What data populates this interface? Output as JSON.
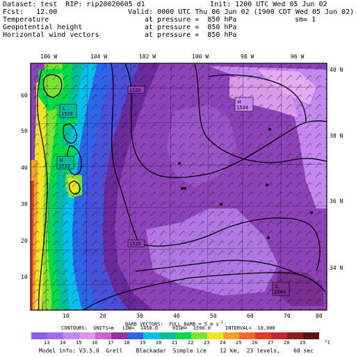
{
  "header": {
    "dataset_line": "Dataset: test  RIP: rip20020605 d1",
    "init_line": "Init: 1200 UTC Wed 05 Jun 02",
    "fcst_line": "Fcst:   12.00",
    "valid_line": "Valid: 0000 UTC Thu 06 Jun 02 (1900 CDT Wed 05 Jun 02)",
    "fields": [
      {
        "name": "Temperature",
        "level": "at pressure =  850 hPa",
        "extra": "sm= 1"
      },
      {
        "name": "Geopotential height",
        "level": "at pressure =  850 hPa",
        "extra": ""
      },
      {
        "name": "Horizontal wind vectors",
        "level": "at pressure =  850 hPa",
        "extra": ""
      }
    ]
  },
  "map": {
    "top_lon_labels": [
      "106 W",
      "104 W",
      "102 W",
      "100 W",
      "98 W",
      "96 W"
    ],
    "right_lat_labels": [
      "40 N",
      "38 N",
      "36 N",
      "34 N"
    ],
    "left_grid_labels": [
      "60",
      "50",
      "40",
      "30",
      "20",
      "10"
    ],
    "bottom_grid_labels": [
      "10",
      "20",
      "30",
      "40",
      "50",
      "60",
      "70",
      "80"
    ],
    "height_labels": [
      {
        "type": "",
        "value": "1520"
      },
      {
        "type": "L",
        "value": "1528"
      },
      {
        "type": "H",
        "value": "1534"
      },
      {
        "type": "H",
        "value": "1532"
      },
      {
        "type": "",
        "value": "1520"
      },
      {
        "type": "L",
        "value": "1504"
      }
    ]
  },
  "footer": {
    "barb_line1": "BARB VECTORS:  FULL BARB = 5 m s",
    "barb_sup": "-1",
    "contour_line": "CONTOURS:  UNITS=m   LOW=  1450.0     HIGH=  1590.0     INTERVAL=  10.000",
    "colorbar_labels": [
      "13",
      "14",
      "15",
      "16",
      "17",
      "18",
      "19",
      "20",
      "21",
      "22",
      "23",
      "24",
      "25",
      "26",
      "27",
      "28",
      "29"
    ],
    "colorbar_unit": "°C",
    "colorbar_colors": [
      "#8a5cf0",
      "#a06ef5",
      "#c487ef",
      "#dc97e8",
      "#cc66cc",
      "#993399",
      "#2c64ea",
      "#00c0ee",
      "#00bc9e",
      "#00d94a",
      "#7ee230",
      "#f0e424",
      "#f4a02a",
      "#f06a2a",
      "#e23a2a",
      "#c0282a",
      "#8a1e1e",
      "#5a1414"
    ],
    "model_info": "Model info: V3.5.0  Grell    Blackadar  Simple ice    12 km,  23 levels,    60 sec"
  }
}
